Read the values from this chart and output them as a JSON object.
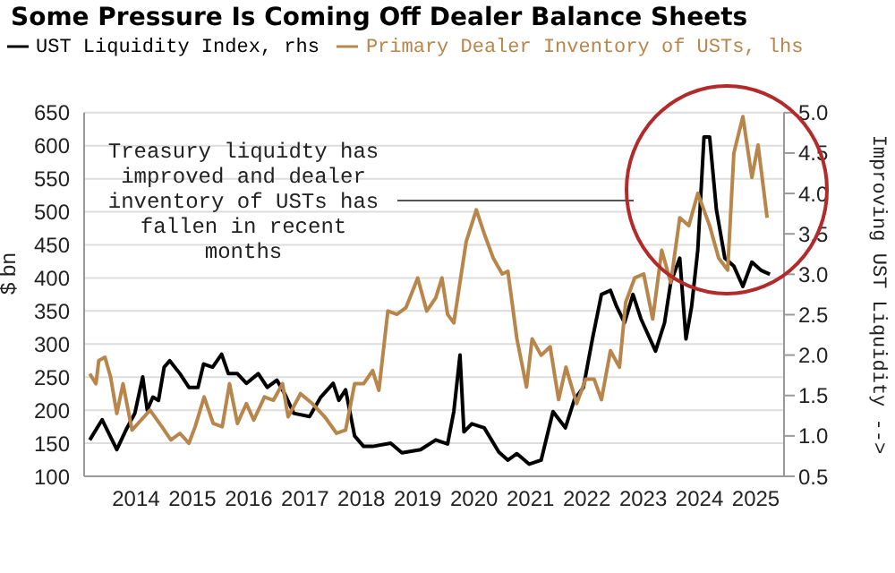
{
  "chart_data": {
    "type": "line",
    "title": "Some Pressure Is Coming Off Dealer Balance Sheets",
    "ylabel": "$ bn",
    "y2label": "Improving UST Liquidity -->",
    "annotations": [
      "Treasury liquidty has improved and dealer inventory of USTs has fallen in recent months"
    ],
    "xlim": [
      2013.58,
      2026.0
    ],
    "xticks": [
      {
        "value": 2014.5,
        "label": "2014"
      },
      {
        "value": 2015.5,
        "label": "2015"
      },
      {
        "value": 2016.5,
        "label": "2016"
      },
      {
        "value": 2017.5,
        "label": "2017"
      },
      {
        "value": 2018.5,
        "label": "2018"
      },
      {
        "value": 2019.5,
        "label": "2019"
      },
      {
        "value": 2020.5,
        "label": "2020"
      },
      {
        "value": 2021.5,
        "label": "2021"
      },
      {
        "value": 2022.5,
        "label": "2022"
      },
      {
        "value": 2023.5,
        "label": "2023"
      },
      {
        "value": 2024.5,
        "label": "2024"
      },
      {
        "value": 2025.5,
        "label": "2025"
      }
    ],
    "ylim": [
      100,
      650
    ],
    "yticks": [
      100,
      150,
      200,
      250,
      300,
      350,
      400,
      450,
      500,
      550,
      600,
      650
    ],
    "y2lim": [
      0.5,
      5.0
    ],
    "y2ticks": [
      {
        "value": 0.5,
        "label": "0.5"
      },
      {
        "value": 1,
        "label": "1.0"
      },
      {
        "value": 1.5,
        "label": "1.5"
      },
      {
        "value": 2,
        "label": "2.0"
      },
      {
        "value": 2.5,
        "label": "2.5"
      },
      {
        "value": 3,
        "label": "3.0"
      },
      {
        "value": 3.5,
        "label": "3.5"
      },
      {
        "value": 4,
        "label": "4.0"
      },
      {
        "value": 4.5,
        "label": "4.5"
      },
      {
        "value": 5,
        "label": "5.0"
      }
    ],
    "grid": "y",
    "legend": "top left",
    "marker": "none",
    "line_style": "solid",
    "series": [
      {
        "name": "UST Liquidity Index, rhs",
        "color": "#000000",
        "axis": "y2",
        "x": [
          2013.68,
          2013.9,
          2014.16,
          2014.32,
          2014.48,
          2014.62,
          2014.7,
          2014.8,
          2014.9,
          2015.0,
          2015.1,
          2015.28,
          2015.44,
          2015.6,
          2015.7,
          2015.86,
          2016.02,
          2016.14,
          2016.3,
          2016.46,
          2016.67,
          2016.83,
          2017.0,
          2017.14,
          2017.3,
          2017.58,
          2017.78,
          2018.0,
          2018.1,
          2018.22,
          2018.38,
          2018.54,
          2018.7,
          2019.02,
          2019.22,
          2019.55,
          2019.82,
          2020.03,
          2020.14,
          2020.25,
          2020.32,
          2020.46,
          2020.68,
          2020.94,
          2021.1,
          2021.26,
          2021.48,
          2021.69,
          2021.9,
          2022.12,
          2022.28,
          2022.44,
          2022.6,
          2022.76,
          2022.92,
          2023.03,
          2023.17,
          2023.32,
          2023.46,
          2023.72,
          2023.88,
          2023.99,
          2024.15,
          2024.26,
          2024.36,
          2024.47,
          2024.58,
          2024.68,
          2024.8,
          2024.95,
          2025.11,
          2025.27,
          2025.43,
          2025.59,
          2025.75
        ],
        "values": [
          0.95,
          1.2,
          0.83,
          1.07,
          1.28,
          1.73,
          1.32,
          1.48,
          1.44,
          1.85,
          1.93,
          1.77,
          1.6,
          1.6,
          1.89,
          1.85,
          2.01,
          1.77,
          1.77,
          1.65,
          1.77,
          1.6,
          1.69,
          1.52,
          1.28,
          1.24,
          1.48,
          1.65,
          1.44,
          1.57,
          1.0,
          0.87,
          0.87,
          0.91,
          0.79,
          0.83,
          0.95,
          0.9,
          1.3,
          2.0,
          1.05,
          1.15,
          1.1,
          0.8,
          0.7,
          0.78,
          0.65,
          0.7,
          1.3,
          1.1,
          1.45,
          1.6,
          2.2,
          2.75,
          2.8,
          2.6,
          2.4,
          2.75,
          2.45,
          2.05,
          2.4,
          2.9,
          3.2,
          2.2,
          2.6,
          3.3,
          4.7,
          4.7,
          3.8,
          3.2,
          3.1,
          2.85,
          3.15,
          3.05,
          3.0
        ]
      },
      {
        "name": "Primary Dealer Inventory of USTs, lhs",
        "color": "#b8864a",
        "x": [
          2013.68,
          2013.79,
          2013.84,
          2013.95,
          2014.05,
          2014.16,
          2014.27,
          2014.43,
          2014.59,
          2014.75,
          2014.96,
          2015.12,
          2015.28,
          2015.44,
          2015.55,
          2015.71,
          2015.87,
          2016.03,
          2016.16,
          2016.3,
          2016.46,
          2016.59,
          2016.78,
          2016.94,
          2017.1,
          2017.2,
          2017.42,
          2017.63,
          2017.85,
          2018.06,
          2018.22,
          2018.38,
          2018.54,
          2018.7,
          2018.81,
          2018.97,
          2019.13,
          2019.29,
          2019.5,
          2019.66,
          2019.82,
          2019.93,
          2020.03,
          2020.14,
          2020.36,
          2020.54,
          2020.68,
          2020.84,
          2021.0,
          2021.1,
          2021.26,
          2021.43,
          2021.53,
          2021.69,
          2021.85,
          2022.0,
          2022.13,
          2022.32,
          2022.48,
          2022.63,
          2022.76,
          2022.92,
          2023.08,
          2023.19,
          2023.35,
          2023.51,
          2023.67,
          2023.83,
          2023.99,
          2024.15,
          2024.31,
          2024.47,
          2024.68,
          2024.84,
          2025.0,
          2025.11,
          2025.27,
          2025.43,
          2025.54,
          2025.62,
          2025.7
        ],
        "values": [
          255,
          240,
          275,
          280,
          250,
          195,
          240,
          170,
          185,
          200,
          175,
          155,
          165,
          150,
          175,
          220,
          180,
          175,
          240,
          180,
          210,
          185,
          220,
          215,
          240,
          190,
          225,
          210,
          190,
          165,
          170,
          240,
          240,
          260,
          230,
          350,
          345,
          355,
          400,
          350,
          370,
          400,
          345,
          332,
          455,
          503,
          467,
          430,
          406,
          410,
          308,
          235,
          308,
          283,
          296,
          216,
          265,
          210,
          247,
          247,
          216,
          290,
          265,
          363,
          400,
          406,
          338,
          442,
          393,
          491,
          479,
          528,
          479,
          430,
          412,
          589,
          644,
          552,
          601,
          546,
          491
        ]
      }
    ]
  }
}
